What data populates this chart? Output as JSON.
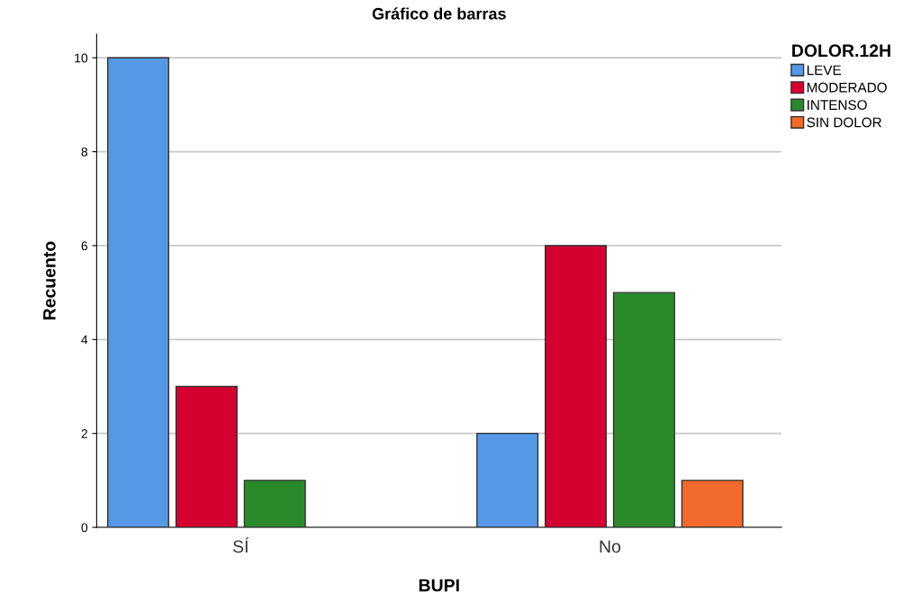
{
  "chart_data": {
    "type": "bar",
    "title": "Gráfico de barras",
    "xlabel": "BUPI",
    "ylabel": "Recuento",
    "legend_title": "DOLOR.12H",
    "categories": [
      "SÍ",
      "No"
    ],
    "series": [
      {
        "name": "LEVE",
        "color": "#5599e6",
        "values": [
          10,
          2
        ]
      },
      {
        "name": "MODERADO",
        "color": "#d40030",
        "values": [
          3,
          6
        ]
      },
      {
        "name": "INTENSO",
        "color": "#2a8a2a",
        "values": [
          1,
          5
        ]
      },
      {
        "name": "SIN DOLOR",
        "color": "#f2692e",
        "values": [
          null,
          1
        ]
      }
    ],
    "ylim": [
      0,
      10.5
    ],
    "yticks": [
      0,
      2,
      4,
      6,
      8,
      10
    ],
    "grid": "y",
    "legend": "top right"
  }
}
